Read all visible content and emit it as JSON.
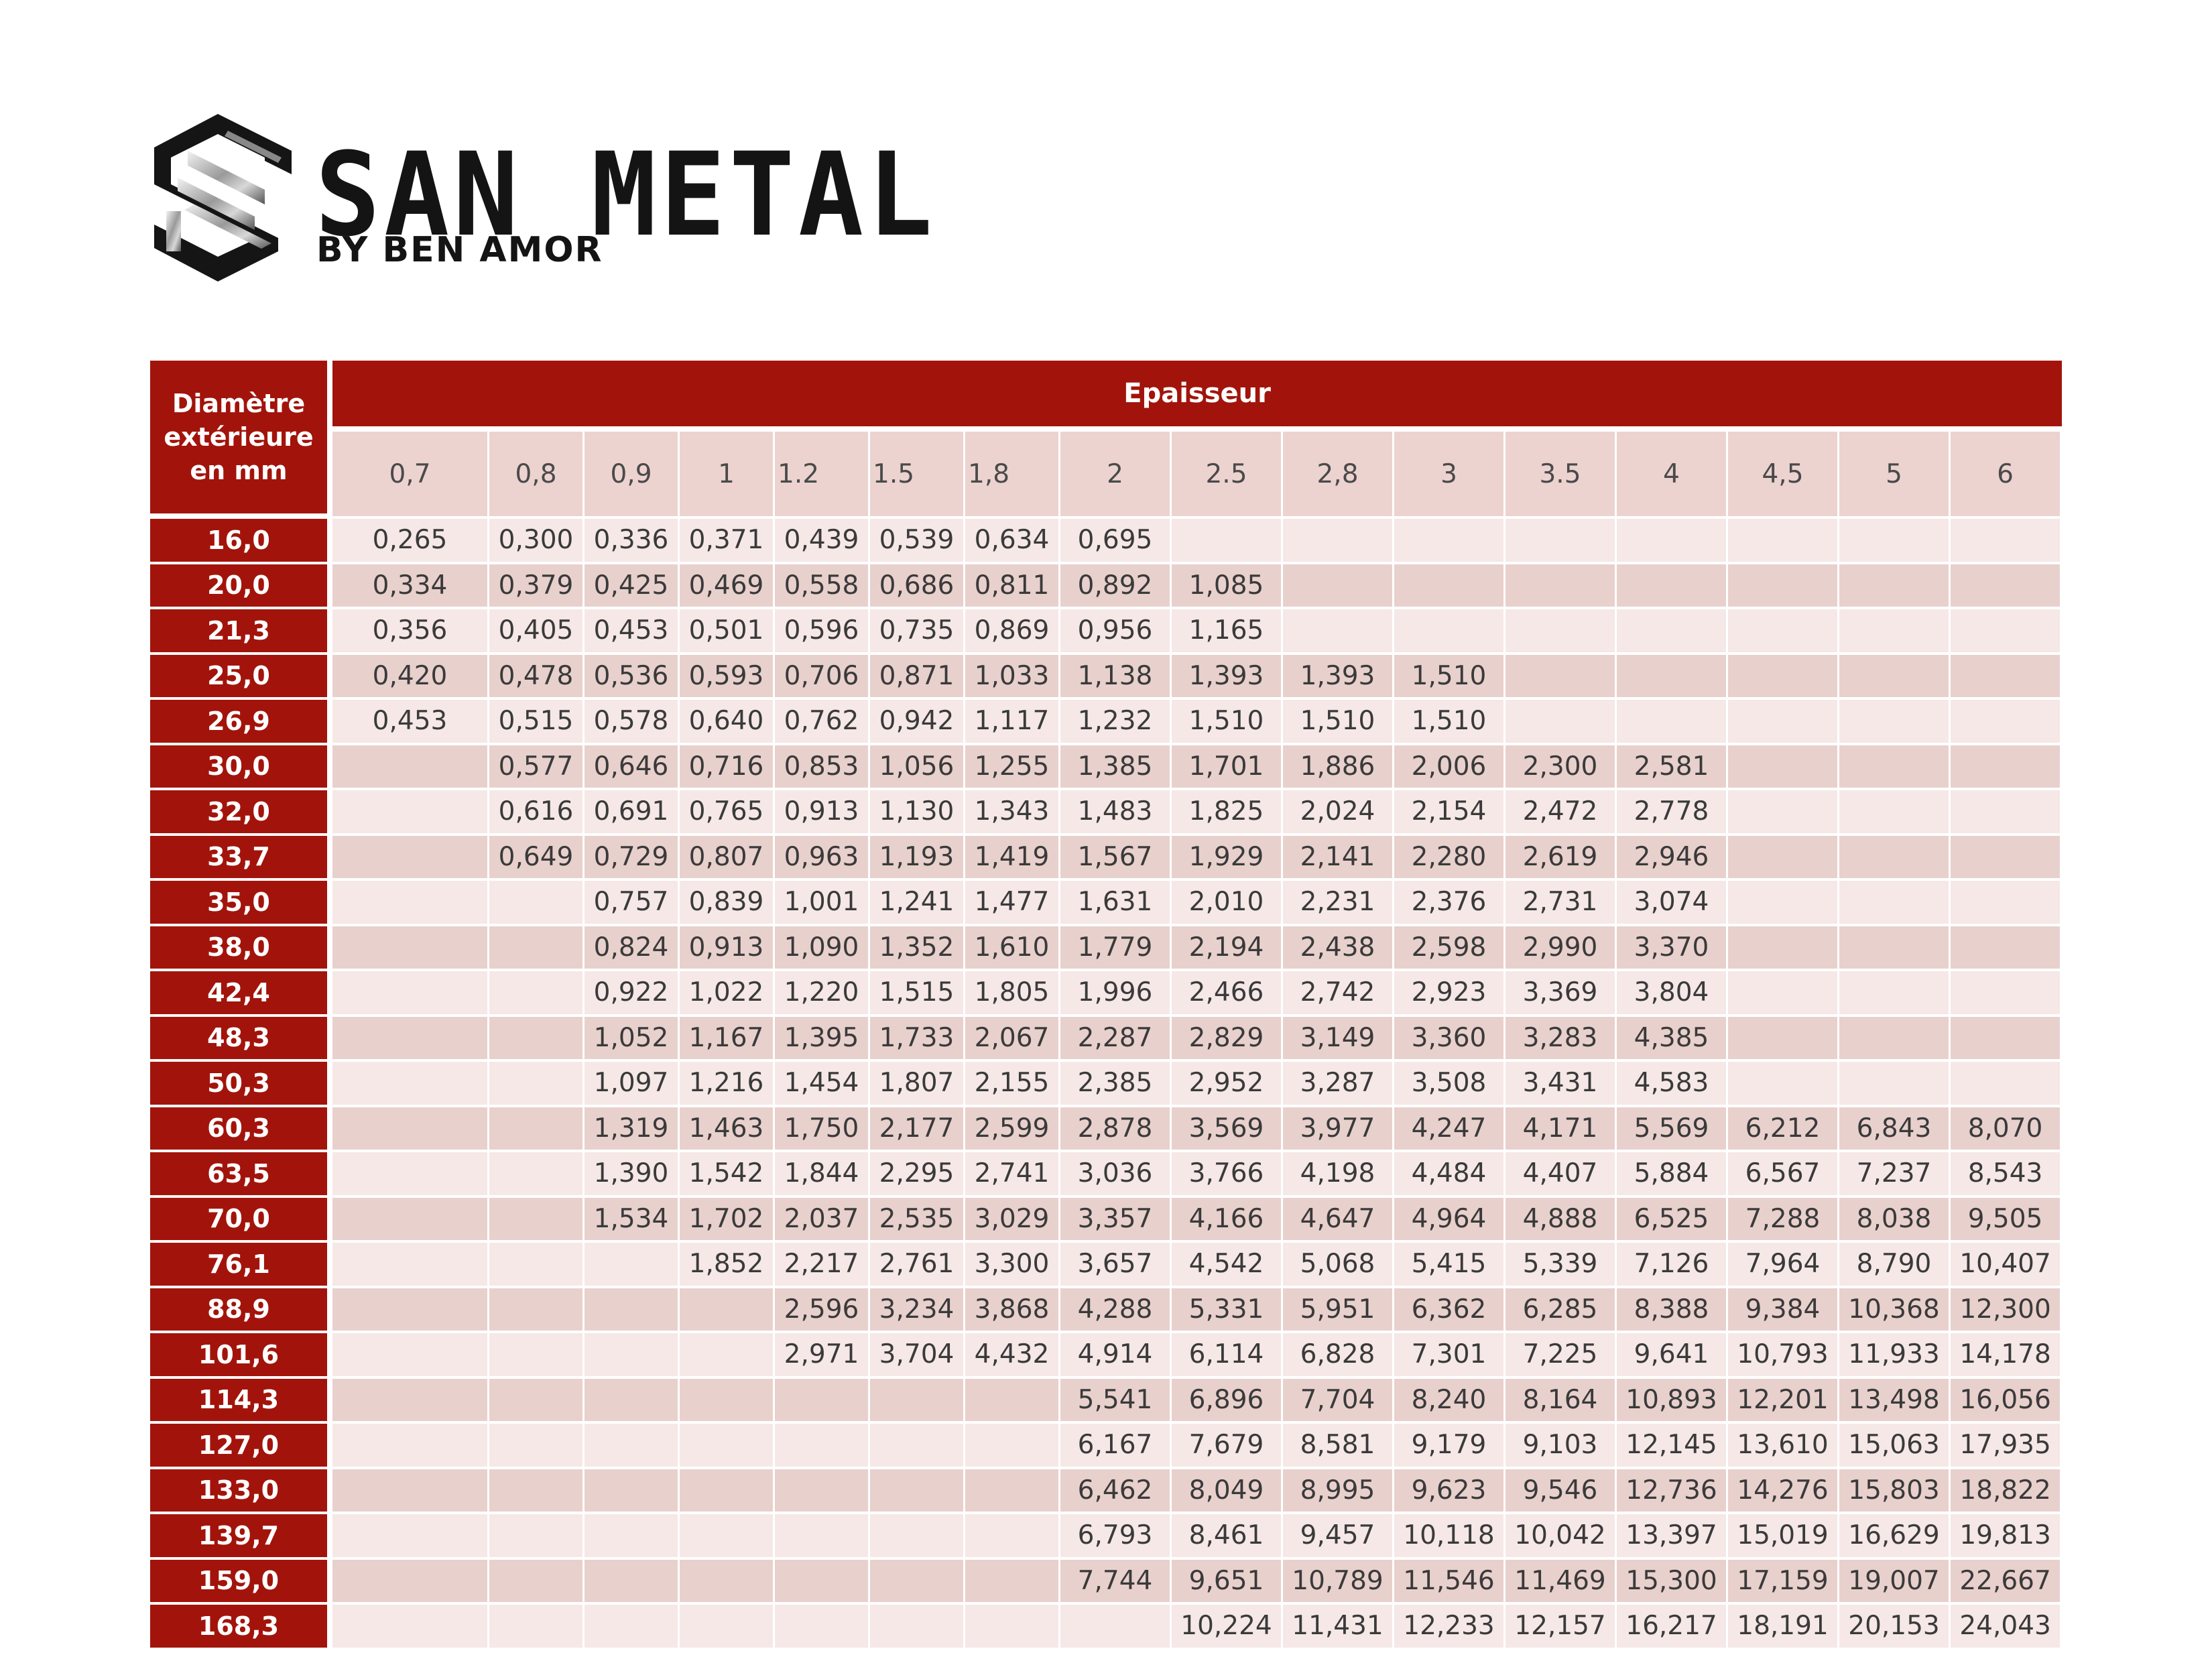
{
  "brand": {
    "name": "SAN METAL",
    "tagline": "BY BEN AMOR",
    "logo_icon": "steel-beam-s-logo"
  },
  "colors": {
    "header_red": "#a2140b",
    "row_dark": "#e8d0cd",
    "row_light": "#f5e8e6",
    "text": "#3a3a3a"
  },
  "table": {
    "corner_header": "Diamètre extérieure en mm",
    "group_header": "Epaisseur",
    "thicknesses": [
      "0,7",
      "0,8",
      "0,9",
      "1",
      "1.2",
      "1.5",
      "1,8",
      "2",
      "2.5",
      "2,8",
      "3",
      "3.5",
      "4",
      "4,5",
      "5",
      "6"
    ],
    "rows": [
      {
        "diameter": "16,0",
        "values": [
          "0,265",
          "0,300",
          "0,336",
          "0,371",
          "0,439",
          "0,539",
          "0,634",
          "0,695",
          "",
          "",
          "",
          "",
          "",
          "",
          "",
          ""
        ]
      },
      {
        "diameter": "20,0",
        "values": [
          "0,334",
          "0,379",
          "0,425",
          "0,469",
          "0,558",
          "0,686",
          "0,811",
          "0,892",
          "1,085",
          "",
          "",
          "",
          "",
          "",
          "",
          ""
        ]
      },
      {
        "diameter": "21,3",
        "values": [
          "0,356",
          "0,405",
          "0,453",
          "0,501",
          "0,596",
          "0,735",
          "0,869",
          "0,956",
          "1,165",
          "",
          "",
          "",
          "",
          "",
          "",
          ""
        ]
      },
      {
        "diameter": "25,0",
        "values": [
          "0,420",
          "0,478",
          "0,536",
          "0,593",
          "0,706",
          "0,871",
          "1,033",
          "1,138",
          "1,393",
          "1,393",
          "1,510",
          "",
          "",
          "",
          "",
          ""
        ]
      },
      {
        "diameter": "26,9",
        "values": [
          "0,453",
          "0,515",
          "0,578",
          "0,640",
          "0,762",
          "0,942",
          "1,117",
          "1,232",
          "1,510",
          "1,510",
          "1,510",
          "",
          "",
          "",
          "",
          ""
        ]
      },
      {
        "diameter": "30,0",
        "values": [
          "",
          "0,577",
          "0,646",
          "0,716",
          "0,853",
          "1,056",
          "1,255",
          "1,385",
          "1,701",
          "1,886",
          "2,006",
          "2,300",
          "2,581",
          "",
          "",
          ""
        ]
      },
      {
        "diameter": "32,0",
        "values": [
          "",
          "0,616",
          "0,691",
          "0,765",
          "0,913",
          "1,130",
          "1,343",
          "1,483",
          "1,825",
          "2,024",
          "2,154",
          "2,472",
          "2,778",
          "",
          "",
          ""
        ]
      },
      {
        "diameter": "33,7",
        "values": [
          "",
          "0,649",
          "0,729",
          "0,807",
          "0,963",
          "1,193",
          "1,419",
          "1,567",
          "1,929",
          "2,141",
          "2,280",
          "2,619",
          "2,946",
          "",
          "",
          ""
        ]
      },
      {
        "diameter": "35,0",
        "values": [
          "",
          "",
          "0,757",
          "0,839",
          "1,001",
          "1,241",
          "1,477",
          "1,631",
          "2,010",
          "2,231",
          "2,376",
          "2,731",
          "3,074",
          "",
          "",
          ""
        ]
      },
      {
        "diameter": "38,0",
        "values": [
          "",
          "",
          "0,824",
          "0,913",
          "1,090",
          "1,352",
          "1,610",
          "1,779",
          "2,194",
          "2,438",
          "2,598",
          "2,990",
          "3,370",
          "",
          "",
          ""
        ]
      },
      {
        "diameter": "42,4",
        "values": [
          "",
          "",
          "0,922",
          "1,022",
          "1,220",
          "1,515",
          "1,805",
          "1,996",
          "2,466",
          "2,742",
          "2,923",
          "3,369",
          "3,804",
          "",
          "",
          ""
        ]
      },
      {
        "diameter": "48,3",
        "values": [
          "",
          "",
          "1,052",
          "1,167",
          "1,395",
          "1,733",
          "2,067",
          "2,287",
          "2,829",
          "3,149",
          "3,360",
          "3,283",
          "4,385",
          "",
          "",
          ""
        ]
      },
      {
        "diameter": "50,3",
        "values": [
          "",
          "",
          "1,097",
          "1,216",
          "1,454",
          "1,807",
          "2,155",
          "2,385",
          "2,952",
          "3,287",
          "3,508",
          "3,431",
          "4,583",
          "",
          "",
          ""
        ]
      },
      {
        "diameter": "60,3",
        "values": [
          "",
          "",
          "1,319",
          "1,463",
          "1,750",
          "2,177",
          "2,599",
          "2,878",
          "3,569",
          "3,977",
          "4,247",
          "4,171",
          "5,569",
          "6,212",
          "6,843",
          "8,070"
        ]
      },
      {
        "diameter": "63,5",
        "values": [
          "",
          "",
          "1,390",
          "1,542",
          "1,844",
          "2,295",
          "2,741",
          "3,036",
          "3,766",
          "4,198",
          "4,484",
          "4,407",
          "5,884",
          "6,567",
          "7,237",
          "8,543"
        ]
      },
      {
        "diameter": "70,0",
        "values": [
          "",
          "",
          "1,534",
          "1,702",
          "2,037",
          "2,535",
          "3,029",
          "3,357",
          "4,166",
          "4,647",
          "4,964",
          "4,888",
          "6,525",
          "7,288",
          "8,038",
          "9,505"
        ]
      },
      {
        "diameter": "76,1",
        "values": [
          "",
          "",
          "",
          "1,852",
          "2,217",
          "2,761",
          "3,300",
          "3,657",
          "4,542",
          "5,068",
          "5,415",
          "5,339",
          "7,126",
          "7,964",
          "8,790",
          "10,407"
        ]
      },
      {
        "diameter": "88,9",
        "values": [
          "",
          "",
          "",
          "",
          "2,596",
          "3,234",
          "3,868",
          "4,288",
          "5,331",
          "5,951",
          "6,362",
          "6,285",
          "8,388",
          "9,384",
          "10,368",
          "12,300"
        ]
      },
      {
        "diameter": "101,6",
        "values": [
          "",
          "",
          "",
          "",
          "2,971",
          "3,704",
          "4,432",
          "4,914",
          "6,114",
          "6,828",
          "7,301",
          "7,225",
          "9,641",
          "10,793",
          "11,933",
          "14,178"
        ]
      },
      {
        "diameter": "114,3",
        "values": [
          "",
          "",
          "",
          "",
          "",
          "",
          "",
          "5,541",
          "6,896",
          "7,704",
          "8,240",
          "8,164",
          "10,893",
          "12,201",
          "13,498",
          "16,056"
        ]
      },
      {
        "diameter": "127,0",
        "values": [
          "",
          "",
          "",
          "",
          "",
          "",
          "",
          "6,167",
          "7,679",
          "8,581",
          "9,179",
          "9,103",
          "12,145",
          "13,610",
          "15,063",
          "17,935"
        ]
      },
      {
        "diameter": "133,0",
        "values": [
          "",
          "",
          "",
          "",
          "",
          "",
          "",
          "6,462",
          "8,049",
          "8,995",
          "9,623",
          "9,546",
          "12,736",
          "14,276",
          "15,803",
          "18,822"
        ]
      },
      {
        "diameter": "139,7",
        "values": [
          "",
          "",
          "",
          "",
          "",
          "",
          "",
          "6,793",
          "8,461",
          "9,457",
          "10,118",
          "10,042",
          "13,397",
          "15,019",
          "16,629",
          "19,813"
        ]
      },
      {
        "diameter": "159,0",
        "values": [
          "",
          "",
          "",
          "",
          "",
          "",
          "",
          "7,744",
          "9,651",
          "10,789",
          "11,546",
          "11,469",
          "15,300",
          "17,159",
          "19,007",
          "22,667"
        ]
      },
      {
        "diameter": "168,3",
        "values": [
          "",
          "",
          "",
          "",
          "",
          "",
          "",
          "",
          "10,224",
          "11,431",
          "12,233",
          "12,157",
          "16,217",
          "18,191",
          "20,153",
          "24,043"
        ]
      }
    ]
  }
}
